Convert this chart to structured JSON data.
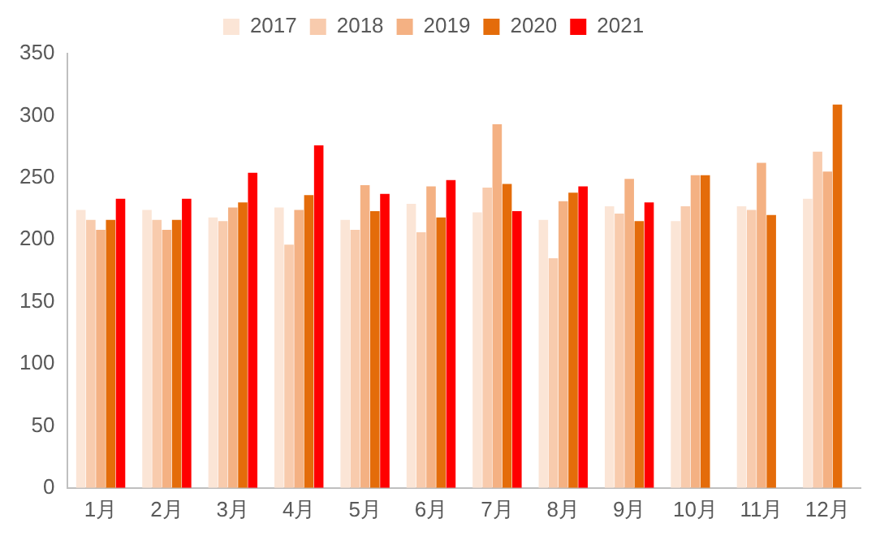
{
  "chart_data": {
    "type": "bar",
    "categories": [
      "1月",
      "2月",
      "3月",
      "4月",
      "5月",
      "6月",
      "7月",
      "8月",
      "9月",
      "10月",
      "11月",
      "12月"
    ],
    "series": [
      {
        "name": "2017",
        "color": "#fbe5d6",
        "values": [
          224,
          224,
          218,
          226,
          216,
          229,
          222,
          216,
          227,
          215,
          227,
          233
        ]
      },
      {
        "name": "2018",
        "color": "#f8cbad",
        "values": [
          216,
          216,
          215,
          196,
          208,
          206,
          242,
          185,
          221,
          227,
          224,
          271
        ]
      },
      {
        "name": "2019",
        "color": "#f4b183",
        "values": [
          208,
          208,
          226,
          224,
          244,
          243,
          293,
          231,
          249,
          252,
          262,
          255
        ]
      },
      {
        "name": "2020",
        "color": "#e46c0a",
        "values": [
          216,
          216,
          230,
          236,
          223,
          218,
          245,
          238,
          215,
          252,
          220,
          309
        ]
      },
      {
        "name": "2021",
        "color": "#ff0000",
        "values": [
          233,
          233,
          254,
          276,
          237,
          248,
          223,
          243,
          230,
          null,
          null,
          null
        ]
      }
    ],
    "ylim": [
      0,
      350
    ],
    "yticks": [
      0,
      50,
      100,
      150,
      200,
      250,
      300,
      350
    ],
    "grid": false,
    "legend": "top"
  }
}
